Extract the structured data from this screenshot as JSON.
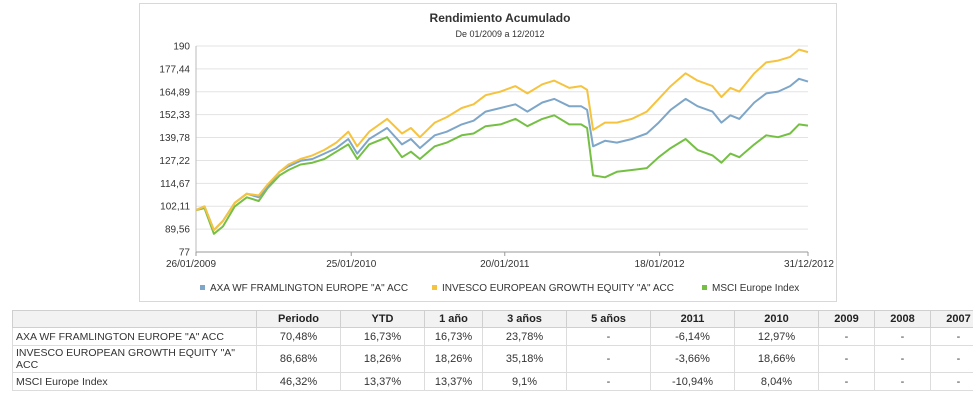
{
  "chart_data": {
    "type": "line",
    "title": "Rendimiento Acumulado",
    "subtitle": "De 01/2009 a 12/2012",
    "y_ticks": [
      "190",
      "177,44",
      "164,89",
      "152,33",
      "139,78",
      "127,22",
      "114,67",
      "102,11",
      "89,56",
      "77"
    ],
    "y_tick_values": [
      190,
      177.44,
      164.89,
      152.33,
      139.78,
      127.22,
      114.67,
      102.11,
      89.56,
      77
    ],
    "ylim": [
      77,
      190
    ],
    "x_ticks": [
      "26/01/2009",
      "25/01/2010",
      "20/01/2011",
      "18/01/2012",
      "31/12/2012"
    ],
    "x_tick_values": [
      "2009-01-26",
      "2010-01-25",
      "2011-01-20",
      "2012-01-18",
      "2012-12-31"
    ],
    "xlim": [
      "2009-01-26",
      "2012-12-31"
    ],
    "grid": "horizontal",
    "legend_position": "bottom",
    "series": [
      {
        "name": "AXA WF FRAMLINGTON EUROPE \"A\" ACC",
        "color": "#7ea6c9",
        "points": [
          [
            "2009-01-26",
            100
          ],
          [
            "2009-02-15",
            102
          ],
          [
            "2009-03-09",
            89
          ],
          [
            "2009-03-30",
            94
          ],
          [
            "2009-04-27",
            104
          ],
          [
            "2009-05-25",
            109
          ],
          [
            "2009-06-22",
            107
          ],
          [
            "2009-07-13",
            113
          ],
          [
            "2009-08-10",
            121
          ],
          [
            "2009-08-31",
            124
          ],
          [
            "2009-09-28",
            127
          ],
          [
            "2009-10-26",
            128
          ],
          [
            "2009-11-23",
            131
          ],
          [
            "2009-12-21",
            134
          ],
          [
            "2010-01-18",
            139
          ],
          [
            "2010-02-08",
            131
          ],
          [
            "2010-03-08",
            139
          ],
          [
            "2010-04-19",
            145
          ],
          [
            "2010-05-24",
            136
          ],
          [
            "2010-06-14",
            139
          ],
          [
            "2010-07-05",
            134
          ],
          [
            "2010-08-09",
            141
          ],
          [
            "2010-09-06",
            143
          ],
          [
            "2010-10-11",
            147
          ],
          [
            "2010-11-08",
            149
          ],
          [
            "2010-12-06",
            154
          ],
          [
            "2011-01-10",
            156
          ],
          [
            "2011-02-14",
            158
          ],
          [
            "2011-03-14",
            154
          ],
          [
            "2011-04-18",
            159
          ],
          [
            "2011-05-16",
            161
          ],
          [
            "2011-06-20",
            157
          ],
          [
            "2011-07-18",
            157
          ],
          [
            "2011-08-01",
            155
          ],
          [
            "2011-08-15",
            135
          ],
          [
            "2011-09-12",
            138
          ],
          [
            "2011-10-10",
            137
          ],
          [
            "2011-11-14",
            139
          ],
          [
            "2011-12-19",
            142
          ],
          [
            "2012-01-16",
            148
          ],
          [
            "2012-02-13",
            155
          ],
          [
            "2012-03-19",
            161
          ],
          [
            "2012-04-16",
            157
          ],
          [
            "2012-05-21",
            154
          ],
          [
            "2012-06-11",
            148
          ],
          [
            "2012-07-02",
            152
          ],
          [
            "2012-07-23",
            150
          ],
          [
            "2012-08-27",
            159
          ],
          [
            "2012-09-24",
            164
          ],
          [
            "2012-10-22",
            165
          ],
          [
            "2012-11-19",
            168
          ],
          [
            "2012-12-10",
            172
          ],
          [
            "2012-12-31",
            170.48
          ]
        ]
      },
      {
        "name": "INVESCO EUROPEAN GROWTH EQUITY \"A\" ACC",
        "color": "#f6c33e",
        "points": [
          [
            "2009-01-26",
            100
          ],
          [
            "2009-02-15",
            102
          ],
          [
            "2009-03-09",
            89
          ],
          [
            "2009-03-30",
            94
          ],
          [
            "2009-04-27",
            104
          ],
          [
            "2009-05-25",
            109
          ],
          [
            "2009-06-22",
            108
          ],
          [
            "2009-07-13",
            114
          ],
          [
            "2009-08-10",
            121
          ],
          [
            "2009-08-31",
            125
          ],
          [
            "2009-09-28",
            128
          ],
          [
            "2009-10-26",
            130
          ],
          [
            "2009-11-23",
            133
          ],
          [
            "2009-12-21",
            137
          ],
          [
            "2010-01-18",
            143
          ],
          [
            "2010-02-08",
            135
          ],
          [
            "2010-03-08",
            143
          ],
          [
            "2010-04-19",
            150
          ],
          [
            "2010-05-24",
            142
          ],
          [
            "2010-06-14",
            145
          ],
          [
            "2010-07-05",
            140
          ],
          [
            "2010-08-09",
            148
          ],
          [
            "2010-09-06",
            151
          ],
          [
            "2010-10-11",
            156
          ],
          [
            "2010-11-08",
            158
          ],
          [
            "2010-12-06",
            163
          ],
          [
            "2011-01-10",
            165
          ],
          [
            "2011-02-14",
            168
          ],
          [
            "2011-03-14",
            164
          ],
          [
            "2011-04-18",
            169
          ],
          [
            "2011-05-16",
            171
          ],
          [
            "2011-06-20",
            167
          ],
          [
            "2011-07-18",
            168
          ],
          [
            "2011-08-01",
            166
          ],
          [
            "2011-08-15",
            144
          ],
          [
            "2011-09-12",
            148
          ],
          [
            "2011-10-10",
            148
          ],
          [
            "2011-11-14",
            150
          ],
          [
            "2011-12-19",
            154
          ],
          [
            "2012-01-16",
            161
          ],
          [
            "2012-02-13",
            168
          ],
          [
            "2012-03-19",
            175
          ],
          [
            "2012-04-16",
            171
          ],
          [
            "2012-05-21",
            168
          ],
          [
            "2012-06-11",
            162
          ],
          [
            "2012-07-02",
            167
          ],
          [
            "2012-07-23",
            165
          ],
          [
            "2012-08-27",
            175
          ],
          [
            "2012-09-24",
            181
          ],
          [
            "2012-10-22",
            182
          ],
          [
            "2012-11-19",
            184
          ],
          [
            "2012-12-10",
            188
          ],
          [
            "2012-12-31",
            186.68
          ]
        ]
      },
      {
        "name": "MSCI Europe Index",
        "color": "#75c044",
        "points": [
          [
            "2009-01-26",
            100
          ],
          [
            "2009-02-15",
            101
          ],
          [
            "2009-03-09",
            87
          ],
          [
            "2009-03-30",
            91
          ],
          [
            "2009-04-27",
            102
          ],
          [
            "2009-05-25",
            107
          ],
          [
            "2009-06-22",
            105
          ],
          [
            "2009-07-13",
            112
          ],
          [
            "2009-08-10",
            119
          ],
          [
            "2009-08-31",
            122
          ],
          [
            "2009-09-28",
            125
          ],
          [
            "2009-10-26",
            126
          ],
          [
            "2009-11-23",
            128
          ],
          [
            "2009-12-21",
            132
          ],
          [
            "2010-01-18",
            136
          ],
          [
            "2010-02-08",
            128
          ],
          [
            "2010-03-08",
            136
          ],
          [
            "2010-04-19",
            140
          ],
          [
            "2010-05-24",
            129
          ],
          [
            "2010-06-14",
            132
          ],
          [
            "2010-07-05",
            128
          ],
          [
            "2010-08-09",
            135
          ],
          [
            "2010-09-06",
            137
          ],
          [
            "2010-10-11",
            141
          ],
          [
            "2010-11-08",
            142
          ],
          [
            "2010-12-06",
            146
          ],
          [
            "2011-01-10",
            147
          ],
          [
            "2011-02-14",
            150
          ],
          [
            "2011-03-14",
            146
          ],
          [
            "2011-04-18",
            150
          ],
          [
            "2011-05-16",
            152
          ],
          [
            "2011-06-20",
            147
          ],
          [
            "2011-07-18",
            147
          ],
          [
            "2011-08-01",
            145
          ],
          [
            "2011-08-15",
            119
          ],
          [
            "2011-09-12",
            118
          ],
          [
            "2011-10-10",
            121
          ],
          [
            "2011-11-14",
            122
          ],
          [
            "2011-12-19",
            123
          ],
          [
            "2012-01-16",
            129
          ],
          [
            "2012-02-13",
            134
          ],
          [
            "2012-03-19",
            139
          ],
          [
            "2012-04-16",
            133
          ],
          [
            "2012-05-21",
            130
          ],
          [
            "2012-06-11",
            126
          ],
          [
            "2012-07-02",
            131
          ],
          [
            "2012-07-23",
            129
          ],
          [
            "2012-08-27",
            136
          ],
          [
            "2012-09-24",
            141
          ],
          [
            "2012-10-22",
            140
          ],
          [
            "2012-11-19",
            142
          ],
          [
            "2012-12-10",
            147
          ],
          [
            "2012-12-31",
            146.32
          ]
        ]
      }
    ]
  },
  "table": {
    "headers": [
      "",
      "Periodo",
      "YTD",
      "1 año",
      "3 años",
      "5 años",
      "2011",
      "2010",
      "2009",
      "2008",
      "2007"
    ],
    "rows": [
      {
        "fund": "AXA WF FRAMLINGTON EUROPE \"A\" ACC",
        "values": [
          "70,48%",
          "16,73%",
          "16,73%",
          "23,78%",
          "-",
          "-6,14%",
          "12,97%",
          "-",
          "-",
          "-"
        ]
      },
      {
        "fund": "INVESCO EUROPEAN GROWTH EQUITY \"A\" ACC",
        "values": [
          "86,68%",
          "18,26%",
          "18,26%",
          "35,18%",
          "-",
          "-3,66%",
          "18,66%",
          "-",
          "-",
          "-"
        ]
      },
      {
        "fund": "MSCI Europe Index",
        "values": [
          "46,32%",
          "13,37%",
          "13,37%",
          "9,1%",
          "-",
          "-10,94%",
          "8,04%",
          "-",
          "-",
          "-"
        ]
      }
    ]
  }
}
